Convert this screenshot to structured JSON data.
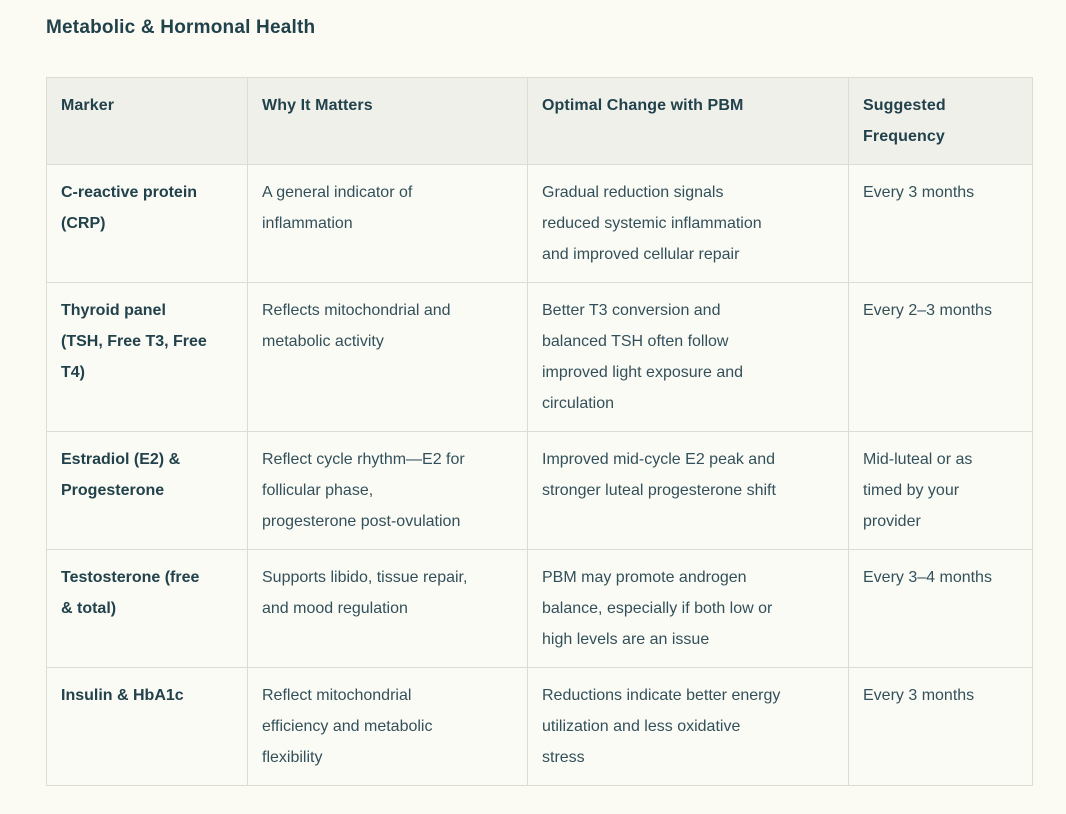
{
  "page": {
    "title": "Metabolic & Hormonal Health"
  },
  "colors": {
    "page_background": "#FBFBF4",
    "table_header_background": "#F0F0EB",
    "table_border": "#DCDCD6",
    "heading_text": "#21414B",
    "body_text": "#33505A"
  },
  "table": {
    "columns": [
      "Marker",
      "Why It Matters",
      "Optimal Change with PBM",
      "Suggested\nFrequency"
    ],
    "rows": [
      {
        "marker": "C-reactive protein\n(CRP)",
        "why": "A general indicator of\ninflammation",
        "optimal": "Gradual reduction signals\nreduced systemic inflammation\nand improved cellular repair",
        "frequency": "Every 3 months"
      },
      {
        "marker": "Thyroid panel\n(TSH, Free T3, Free\nT4)",
        "why": "Reflects mitochondrial and\nmetabolic activity",
        "optimal": "Better T3 conversion and\nbalanced TSH often follow\nimproved light exposure and\ncirculation",
        "frequency": "Every 2–3 months"
      },
      {
        "marker": "Estradiol (E2) &\nProgesterone",
        "why": "Reflect cycle rhythm—E2 for\nfollicular phase,\nprogesterone post-ovulation",
        "optimal": "Improved mid-cycle E2 peak and\nstronger luteal progesterone shift",
        "frequency": "Mid-luteal or as\ntimed by your\nprovider"
      },
      {
        "marker": "Testosterone (free\n& total)",
        "why": "Supports libido, tissue repair,\nand mood regulation",
        "optimal": "PBM may promote androgen\nbalance, especially if both low or\nhigh levels are an issue",
        "frequency": "Every 3–4 months"
      },
      {
        "marker": "Insulin & HbA1c",
        "why": "Reflect mitochondrial\nefficiency and metabolic\nflexibility",
        "optimal": "Reductions indicate better energy\nutilization and less oxidative\nstress",
        "frequency": "Every 3 months"
      }
    ]
  }
}
